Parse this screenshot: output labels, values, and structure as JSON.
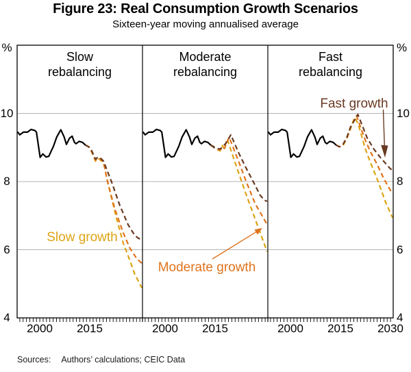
{
  "chart_data": {
    "type": "line",
    "title": "Figure 23: Real Consumption Growth Scenarios",
    "subtitle": "Sixteen-year moving annualised average",
    "unit_label": "%",
    "ylim": [
      4,
      12
    ],
    "gridline_values": [
      6,
      8,
      10
    ],
    "y_tick_values": [
      10,
      8,
      6,
      4
    ],
    "y_tick_labels": [
      "10",
      "8",
      "6",
      "4"
    ],
    "x_domain": [
      1993.2,
      2030.8
    ],
    "grid": "horizontal-only",
    "legend_position": "in-plot-annotations",
    "history": {
      "name": "Historical consumption growth",
      "points": [
        [
          1993.3,
          9.46
        ],
        [
          1994.0,
          9.37
        ],
        [
          1995.1,
          9.45
        ],
        [
          1996.3,
          9.45
        ],
        [
          1997.4,
          9.53
        ],
        [
          1998.5,
          9.5
        ],
        [
          1999.0,
          9.45
        ],
        [
          2000.1,
          8.71
        ],
        [
          2000.9,
          8.81
        ],
        [
          2001.9,
          8.72
        ],
        [
          2002.7,
          8.74
        ],
        [
          2004.1,
          9.04
        ],
        [
          2005.1,
          9.31
        ],
        [
          2006.3,
          9.52
        ],
        [
          2007.3,
          9.31
        ],
        [
          2008.0,
          9.09
        ],
        [
          2008.9,
          9.27
        ],
        [
          2009.7,
          9.33
        ],
        [
          2010.4,
          9.15
        ],
        [
          2010.9,
          9.11
        ],
        [
          2011.8,
          9.18
        ],
        [
          2012.8,
          9.15
        ],
        [
          2013.7,
          9.07
        ],
        [
          2014.7,
          9.02
        ]
      ]
    },
    "panels": [
      {
        "label": "Slow\nrebalancing",
        "x_ticks": [
          {
            "year": 2000,
            "label": "2000"
          },
          {
            "year": 2015,
            "label": "2015"
          }
        ],
        "series": [
          {
            "name": "Slow growth",
            "color": "gold",
            "points": [
              [
                2013.7,
                9.07
              ],
              [
                2014.7,
                9.02
              ],
              [
                2015.5,
                8.88
              ],
              [
                2016.7,
                8.6
              ],
              [
                2017.5,
                8.68
              ],
              [
                2018.3,
                8.62
              ],
              [
                2019.1,
                8.55
              ],
              [
                2021.0,
                7.72
              ],
              [
                2023.0,
                6.93
              ],
              [
                2025.0,
                6.2
              ],
              [
                2026.5,
                5.82
              ],
              [
                2028.5,
                5.28
              ],
              [
                2030.6,
                4.88
              ]
            ]
          },
          {
            "name": "Moderate growth",
            "color": "orange",
            "points": [
              [
                2013.7,
                9.07
              ],
              [
                2014.7,
                9.02
              ],
              [
                2015.5,
                8.9
              ],
              [
                2016.7,
                8.63
              ],
              [
                2017.5,
                8.7
              ],
              [
                2018.3,
                8.65
              ],
              [
                2019.1,
                8.57
              ],
              [
                2020.3,
                8.0
              ],
              [
                2022.5,
                7.2
              ],
              [
                2025.0,
                6.5
              ],
              [
                2027.0,
                6.05
              ],
              [
                2029.0,
                5.75
              ],
              [
                2030.6,
                5.6
              ]
            ]
          },
          {
            "name": "Fast growth",
            "color": "brown",
            "points": [
              [
                2013.7,
                9.07
              ],
              [
                2014.7,
                9.02
              ],
              [
                2015.5,
                8.92
              ],
              [
                2016.7,
                8.66
              ],
              [
                2017.5,
                8.72
              ],
              [
                2018.3,
                8.68
              ],
              [
                2019.1,
                8.6
              ],
              [
                2021.5,
                8.0
              ],
              [
                2024.0,
                7.3
              ],
              [
                2026.5,
                6.73
              ],
              [
                2028.5,
                6.42
              ],
              [
                2029.7,
                6.33
              ],
              [
                2030.6,
                6.3
              ]
            ]
          }
        ]
      },
      {
        "label": "Moderate\nrebalancing",
        "x_ticks": [
          {
            "year": 2000,
            "label": "2000"
          },
          {
            "year": 2015,
            "label": "2015"
          }
        ],
        "series": [
          {
            "name": "Slow growth",
            "color": "gold",
            "points": [
              [
                2013.7,
                9.07
              ],
              [
                2014.7,
                9.0
              ],
              [
                2015.7,
                8.93
              ],
              [
                2016.5,
                8.9
              ],
              [
                2017.2,
                9.06
              ],
              [
                2017.7,
                8.96
              ],
              [
                2018.6,
                9.25
              ],
              [
                2021.0,
                8.55
              ],
              [
                2024.0,
                7.7
              ],
              [
                2027.0,
                6.9
              ],
              [
                2030.6,
                5.94
              ]
            ]
          },
          {
            "name": "Moderate growth",
            "color": "orange",
            "points": [
              [
                2013.7,
                9.07
              ],
              [
                2014.7,
                9.0
              ],
              [
                2015.7,
                8.95
              ],
              [
                2016.5,
                8.93
              ],
              [
                2017.3,
                9.02
              ],
              [
                2017.8,
                8.97
              ],
              [
                2019.2,
                9.3
              ],
              [
                2022.0,
                8.6
              ],
              [
                2024.3,
                8.0
              ],
              [
                2027.0,
                7.35
              ],
              [
                2030.6,
                6.74
              ]
            ]
          },
          {
            "name": "Fast growth",
            "color": "brown",
            "points": [
              [
                2013.7,
                9.07
              ],
              [
                2014.7,
                9.0
              ],
              [
                2015.7,
                8.97
              ],
              [
                2016.5,
                8.95
              ],
              [
                2017.5,
                9.05
              ],
              [
                2018.2,
                9.12
              ],
              [
                2019.7,
                9.37
              ],
              [
                2022.0,
                8.85
              ],
              [
                2024.0,
                8.45
              ],
              [
                2026.4,
                8.0
              ],
              [
                2028.5,
                7.6
              ],
              [
                2029.8,
                7.45
              ],
              [
                2030.6,
                7.42
              ]
            ]
          }
        ]
      },
      {
        "label": "Fast\nrebalancing",
        "x_ticks": [
          {
            "year": 2000,
            "label": "2000"
          },
          {
            "year": 2015,
            "label": "2015"
          },
          {
            "year": 2030,
            "label": "2030"
          }
        ],
        "series": [
          {
            "name": "Slow growth",
            "color": "gold",
            "points": [
              [
                2013.7,
                9.07
              ],
              [
                2014.7,
                9.02
              ],
              [
                2015.7,
                9.05
              ],
              [
                2017.0,
                9.28
              ],
              [
                2018.0,
                9.55
              ],
              [
                2019.2,
                9.88
              ],
              [
                2020.2,
                9.72
              ],
              [
                2021.3,
                9.35
              ],
              [
                2022.3,
                9.0
              ],
              [
                2024.0,
                8.55
              ],
              [
                2026.3,
                8.0
              ],
              [
                2028.5,
                7.4
              ],
              [
                2030.6,
                6.94
              ]
            ]
          },
          {
            "name": "Moderate growth",
            "color": "orange",
            "points": [
              [
                2013.7,
                9.07
              ],
              [
                2014.7,
                9.02
              ],
              [
                2015.7,
                9.07
              ],
              [
                2017.0,
                9.3
              ],
              [
                2018.0,
                9.58
              ],
              [
                2019.8,
                9.93
              ],
              [
                2021.0,
                9.6
              ],
              [
                2022.5,
                9.2
              ],
              [
                2024.0,
                8.87
              ],
              [
                2026.0,
                8.5
              ],
              [
                2028.0,
                8.08
              ],
              [
                2029.5,
                7.82
              ],
              [
                2030.6,
                7.64
              ]
            ]
          },
          {
            "name": "Fast growth",
            "color": "brown",
            "points": [
              [
                2013.7,
                9.07
              ],
              [
                2014.7,
                9.02
              ],
              [
                2015.7,
                9.08
              ],
              [
                2017.0,
                9.32
              ],
              [
                2018.0,
                9.6
              ],
              [
                2020.2,
                9.97
              ],
              [
                2021.5,
                9.65
              ],
              [
                2023.0,
                9.28
              ],
              [
                2025.0,
                8.95
              ],
              [
                2027.0,
                8.7
              ],
              [
                2028.8,
                8.5
              ],
              [
                2030.0,
                8.37
              ],
              [
                2030.6,
                8.34
              ]
            ]
          }
        ]
      }
    ],
    "annotations": [
      {
        "text": "Slow growth",
        "color": "gold",
        "panel": 0
      },
      {
        "text": "Moderate growth",
        "color": "orange",
        "panel": 1
      },
      {
        "text": "Fast growth",
        "color": "brown",
        "panel": 2
      }
    ]
  },
  "colors": {
    "gold": "#dda313",
    "orange": "#e0731c",
    "brown": "#693a22",
    "history": "#000000",
    "gridline": "#b3b3b3",
    "frame": "#000000"
  },
  "footer": {
    "label": "Sources:",
    "text": "Authors’ calculations; CEIC Data"
  }
}
